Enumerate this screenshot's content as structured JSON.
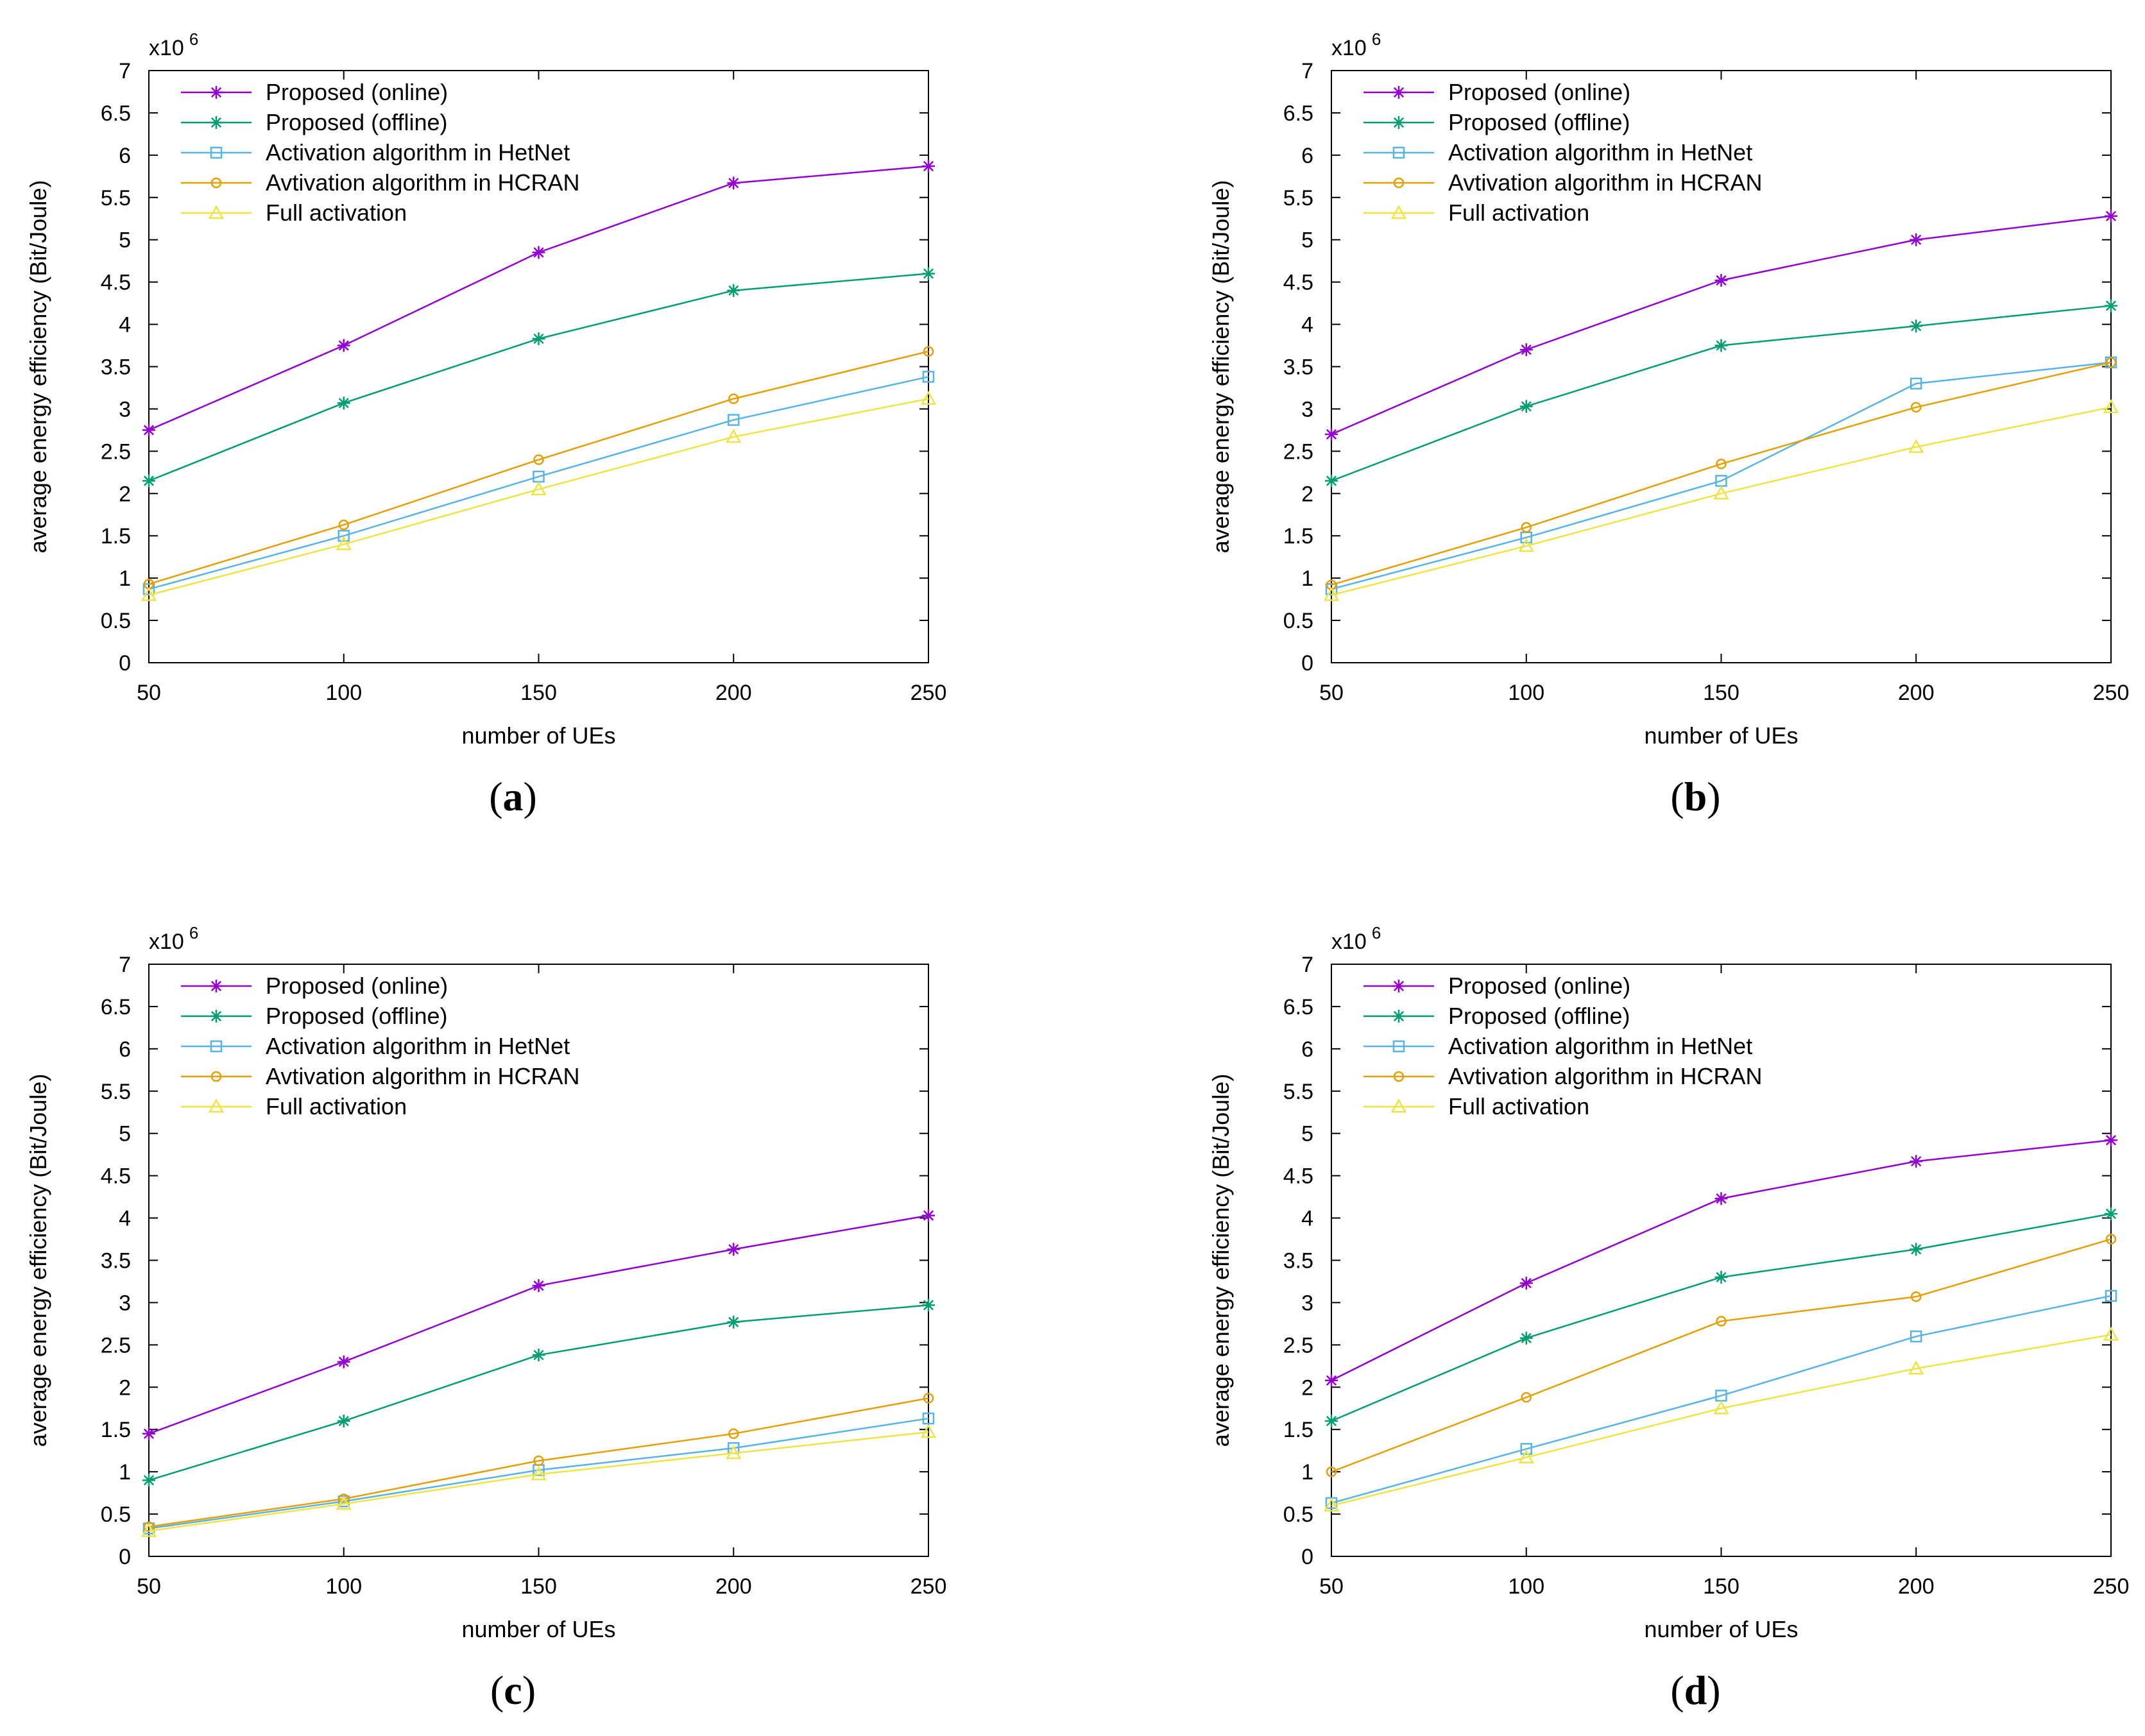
{
  "chart_data": [
    {
      "type": "line",
      "panel_label": "(a)",
      "x": [
        50,
        100,
        150,
        200,
        250
      ],
      "xlabel": "number of UEs",
      "ylabel": "average energy efficiency (Bit/Joule)",
      "y_multiplier": "x10 6",
      "ylim": [
        0,
        7
      ],
      "xlim": [
        50,
        250
      ],
      "yticks": [
        0,
        0.5,
        1,
        1.5,
        2,
        2.5,
        3,
        3.5,
        4,
        4.5,
        5,
        5.5,
        6,
        6.5,
        7
      ],
      "xticks": [
        50,
        100,
        150,
        200,
        250
      ],
      "legend_position": "top-left",
      "series": [
        {
          "name": "Proposed (online)",
          "color": "#9400d3",
          "marker": "star",
          "values": [
            2.75,
            3.75,
            4.85,
            5.67,
            5.87
          ]
        },
        {
          "name": "Proposed (offline)",
          "color": "#009e73",
          "marker": "star",
          "values": [
            2.15,
            3.07,
            3.83,
            4.4,
            4.6
          ]
        },
        {
          "name": "Activation algorithm in HetNet",
          "color": "#56b4e9",
          "marker": "square",
          "values": [
            0.87,
            1.5,
            2.2,
            2.87,
            3.38
          ]
        },
        {
          "name": "Avtivation algorithm in HCRAN",
          "color": "#e69f00",
          "marker": "circle",
          "values": [
            0.93,
            1.63,
            2.4,
            3.12,
            3.68
          ]
        },
        {
          "name": "Full activation",
          "color": "#f0e442",
          "marker": "triangle",
          "values": [
            0.8,
            1.4,
            2.05,
            2.67,
            3.12
          ]
        }
      ]
    },
    {
      "type": "line",
      "panel_label": "(b)",
      "x": [
        50,
        100,
        150,
        200,
        250
      ],
      "xlabel": "number of UEs",
      "ylabel": "average energy efficiency (Bit/Joule)",
      "y_multiplier": "x10 6",
      "ylim": [
        0,
        7
      ],
      "xlim": [
        50,
        250
      ],
      "yticks": [
        0,
        0.5,
        1,
        1.5,
        2,
        2.5,
        3,
        3.5,
        4,
        4.5,
        5,
        5.5,
        6,
        6.5,
        7
      ],
      "xticks": [
        50,
        100,
        150,
        200,
        250
      ],
      "legend_position": "top-left",
      "series": [
        {
          "name": "Proposed (online)",
          "color": "#9400d3",
          "marker": "star",
          "values": [
            2.7,
            3.7,
            4.52,
            5.0,
            5.28
          ]
        },
        {
          "name": "Proposed (offline)",
          "color": "#009e73",
          "marker": "star",
          "values": [
            2.15,
            3.03,
            3.75,
            3.98,
            4.22
          ]
        },
        {
          "name": "Activation algorithm in HetNet",
          "color": "#56b4e9",
          "marker": "square",
          "values": [
            0.87,
            1.48,
            2.15,
            3.3,
            3.55
          ]
        },
        {
          "name": "Avtivation algorithm in HCRAN",
          "color": "#e69f00",
          "marker": "circle",
          "values": [
            0.92,
            1.6,
            2.35,
            3.02,
            3.55
          ]
        },
        {
          "name": "Full activation",
          "color": "#f0e442",
          "marker": "triangle",
          "values": [
            0.8,
            1.38,
            2.0,
            2.55,
            3.02
          ]
        }
      ]
    },
    {
      "type": "line",
      "panel_label": "(c)",
      "x": [
        50,
        100,
        150,
        200,
        250
      ],
      "xlabel": "number of UEs",
      "ylabel": "average energy efficiency (Bit/Joule)",
      "y_multiplier": "x10 6",
      "ylim": [
        0,
        7
      ],
      "xlim": [
        50,
        250
      ],
      "yticks": [
        0,
        0.5,
        1,
        1.5,
        2,
        2.5,
        3,
        3.5,
        4,
        4.5,
        5,
        5.5,
        6,
        6.5,
        7
      ],
      "xticks": [
        50,
        100,
        150,
        200,
        250
      ],
      "legend_position": "top-left",
      "series": [
        {
          "name": "Proposed (online)",
          "color": "#9400d3",
          "marker": "star",
          "values": [
            1.45,
            2.3,
            3.2,
            3.63,
            4.03
          ]
        },
        {
          "name": "Proposed (offline)",
          "color": "#009e73",
          "marker": "star",
          "values": [
            0.9,
            1.6,
            2.38,
            2.77,
            2.97
          ]
        },
        {
          "name": "Activation algorithm in HetNet",
          "color": "#56b4e9",
          "marker": "square",
          "values": [
            0.33,
            0.65,
            1.02,
            1.28,
            1.63
          ]
        },
        {
          "name": "Avtivation algorithm in HCRAN",
          "color": "#e69f00",
          "marker": "circle",
          "values": [
            0.35,
            0.68,
            1.13,
            1.45,
            1.87
          ]
        },
        {
          "name": "Full activation",
          "color": "#f0e442",
          "marker": "triangle",
          "values": [
            0.3,
            0.62,
            0.97,
            1.22,
            1.47
          ]
        }
      ]
    },
    {
      "type": "line",
      "panel_label": "(d)",
      "x": [
        50,
        100,
        150,
        200,
        250
      ],
      "xlabel": "number of UEs",
      "ylabel": "average energy efficiency (Bit/Joule)",
      "y_multiplier": "x10 6",
      "ylim": [
        0,
        7
      ],
      "xlim": [
        50,
        250
      ],
      "yticks": [
        0,
        0.5,
        1,
        1.5,
        2,
        2.5,
        3,
        3.5,
        4,
        4.5,
        5,
        5.5,
        6,
        6.5,
        7
      ],
      "xticks": [
        50,
        100,
        150,
        200,
        250
      ],
      "legend_position": "top-left",
      "series": [
        {
          "name": "Proposed (online)",
          "color": "#9400d3",
          "marker": "star",
          "values": [
            2.08,
            3.23,
            4.23,
            4.67,
            4.92
          ]
        },
        {
          "name": "Proposed (offline)",
          "color": "#009e73",
          "marker": "star",
          "values": [
            1.6,
            2.58,
            3.3,
            3.63,
            4.05
          ]
        },
        {
          "name": "Activation algorithm in HetNet",
          "color": "#56b4e9",
          "marker": "square",
          "values": [
            0.63,
            1.27,
            1.9,
            2.6,
            3.08
          ]
        },
        {
          "name": "Avtivation algorithm in HCRAN",
          "color": "#e69f00",
          "marker": "circle",
          "values": [
            1.0,
            1.88,
            2.78,
            3.07,
            3.75
          ]
        },
        {
          "name": "Full activation",
          "color": "#f0e442",
          "marker": "triangle",
          "values": [
            0.6,
            1.17,
            1.75,
            2.22,
            2.62
          ]
        }
      ]
    }
  ]
}
